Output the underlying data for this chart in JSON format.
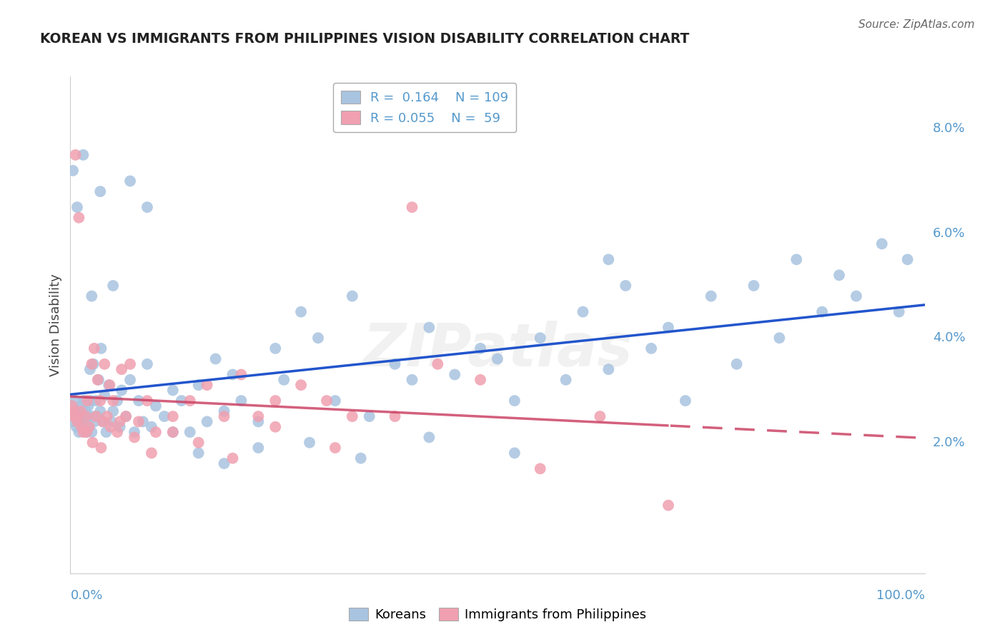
{
  "title": "KOREAN VS IMMIGRANTS FROM PHILIPPINES VISION DISABILITY CORRELATION CHART",
  "source": "Source: ZipAtlas.com",
  "ylabel": "Vision Disability",
  "ylabel_right_labels": [
    "2.0%",
    "4.0%",
    "6.0%",
    "8.0%"
  ],
  "ylabel_right_values": [
    0.02,
    0.04,
    0.06,
    0.08
  ],
  "watermark": "ZIPatlas",
  "legend_blue_R": "R =  0.164",
  "legend_blue_N": "N = 109",
  "legend_pink_R": "R = 0.055",
  "legend_pink_N": "N =  59",
  "blue_color": "#a8c4e0",
  "pink_color": "#f0a0b0",
  "blue_line_color": "#2255cc",
  "pink_line_color": "#cc4466",
  "background_color": "#ffffff",
  "grid_color": "#cccccc",
  "title_color": "#222222",
  "axis_label_color": "#5599cc",
  "xlim": [
    0.0,
    1.0
  ],
  "ylim": [
    -0.005,
    0.09
  ],
  "koreans_x": [
    0.002,
    0.003,
    0.004,
    0.005,
    0.006,
    0.007,
    0.008,
    0.009,
    0.01,
    0.012,
    0.013,
    0.014,
    0.015,
    0.016,
    0.017,
    0.018,
    0.019,
    0.02,
    0.021,
    0.022,
    0.023,
    0.024,
    0.025,
    0.026,
    0.027,
    0.028,
    0.03,
    0.032,
    0.033,
    0.035,
    0.036,
    0.038,
    0.04,
    0.042,
    0.045,
    0.048,
    0.05,
    0.055,
    0.058,
    0.06,
    0.065,
    0.07,
    0.075,
    0.08,
    0.085,
    0.09,
    0.095,
    0.1,
    0.11,
    0.12,
    0.13,
    0.14,
    0.15,
    0.16,
    0.17,
    0.18,
    0.19,
    0.2,
    0.22,
    0.24,
    0.25,
    0.27,
    0.29,
    0.31,
    0.33,
    0.35,
    0.38,
    0.4,
    0.42,
    0.45,
    0.48,
    0.5,
    0.52,
    0.55,
    0.58,
    0.6,
    0.63,
    0.65,
    0.68,
    0.7,
    0.72,
    0.75,
    0.78,
    0.8,
    0.83,
    0.85,
    0.88,
    0.9,
    0.92,
    0.95,
    0.97,
    0.98,
    0.003,
    0.008,
    0.015,
    0.025,
    0.035,
    0.05,
    0.07,
    0.09,
    0.12,
    0.15,
    0.18,
    0.22,
    0.28,
    0.34,
    0.42,
    0.52,
    0.63
  ],
  "koreans_y": [
    0.027,
    0.025,
    0.026,
    0.024,
    0.028,
    0.023,
    0.025,
    0.026,
    0.022,
    0.027,
    0.024,
    0.025,
    0.023,
    0.028,
    0.024,
    0.026,
    0.022,
    0.025,
    0.027,
    0.023,
    0.034,
    0.028,
    0.022,
    0.025,
    0.035,
    0.024,
    0.028,
    0.025,
    0.032,
    0.026,
    0.038,
    0.024,
    0.029,
    0.022,
    0.031,
    0.024,
    0.026,
    0.028,
    0.023,
    0.03,
    0.025,
    0.032,
    0.022,
    0.028,
    0.024,
    0.035,
    0.023,
    0.027,
    0.025,
    0.03,
    0.028,
    0.022,
    0.031,
    0.024,
    0.036,
    0.026,
    0.033,
    0.028,
    0.024,
    0.038,
    0.032,
    0.045,
    0.04,
    0.028,
    0.048,
    0.025,
    0.035,
    0.032,
    0.042,
    0.033,
    0.038,
    0.036,
    0.028,
    0.04,
    0.032,
    0.045,
    0.034,
    0.05,
    0.038,
    0.042,
    0.028,
    0.048,
    0.035,
    0.05,
    0.04,
    0.055,
    0.045,
    0.052,
    0.048,
    0.058,
    0.045,
    0.055,
    0.072,
    0.065,
    0.075,
    0.048,
    0.068,
    0.05,
    0.07,
    0.065,
    0.022,
    0.018,
    0.016,
    0.019,
    0.02,
    0.017,
    0.021,
    0.018,
    0.055
  ],
  "philippines_x": [
    0.002,
    0.004,
    0.006,
    0.008,
    0.01,
    0.012,
    0.015,
    0.018,
    0.02,
    0.022,
    0.025,
    0.028,
    0.03,
    0.032,
    0.035,
    0.038,
    0.04,
    0.043,
    0.046,
    0.05,
    0.055,
    0.06,
    0.065,
    0.07,
    0.08,
    0.09,
    0.1,
    0.12,
    0.14,
    0.16,
    0.18,
    0.2,
    0.22,
    0.24,
    0.27,
    0.3,
    0.33,
    0.38,
    0.43,
    0.48,
    0.55,
    0.62,
    0.7,
    0.003,
    0.007,
    0.013,
    0.019,
    0.026,
    0.036,
    0.047,
    0.058,
    0.075,
    0.095,
    0.12,
    0.15,
    0.19,
    0.24,
    0.31,
    0.4
  ],
  "philippines_y": [
    0.027,
    0.025,
    0.075,
    0.024,
    0.063,
    0.026,
    0.022,
    0.025,
    0.028,
    0.023,
    0.035,
    0.038,
    0.025,
    0.032,
    0.028,
    0.024,
    0.035,
    0.025,
    0.031,
    0.028,
    0.022,
    0.034,
    0.025,
    0.035,
    0.024,
    0.028,
    0.022,
    0.025,
    0.028,
    0.031,
    0.025,
    0.033,
    0.025,
    0.028,
    0.031,
    0.028,
    0.025,
    0.025,
    0.035,
    0.032,
    0.015,
    0.025,
    0.008,
    0.026,
    0.025,
    0.023,
    0.022,
    0.02,
    0.019,
    0.023,
    0.024,
    0.021,
    0.018,
    0.022,
    0.02,
    0.017,
    0.023,
    0.019,
    0.065
  ]
}
